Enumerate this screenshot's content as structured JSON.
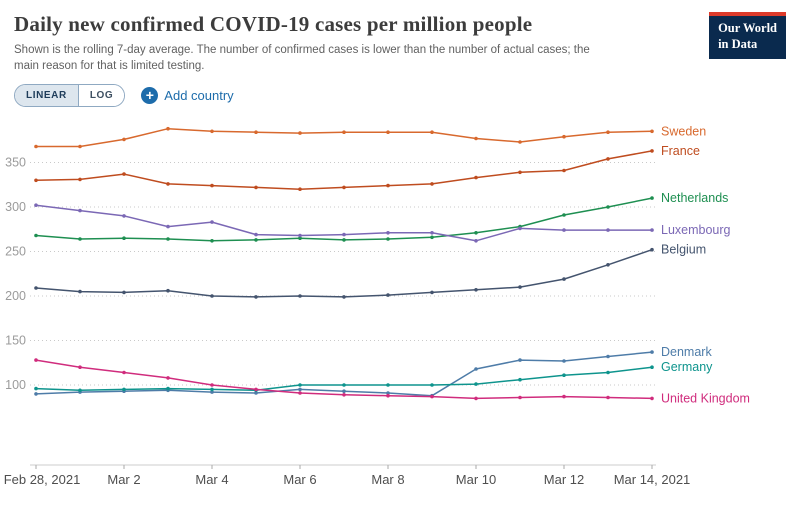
{
  "header": {
    "title": "Daily new confirmed COVID-19 cases per million people",
    "subtitle": "Shown is the rolling 7-day average. The number of confirmed cases is lower than the number of actual cases; the main reason for that is limited testing.",
    "logo": {
      "line1": "Our World",
      "line2": "in Data"
    }
  },
  "controls": {
    "linear_label": "LINEAR",
    "log_label": "LOG",
    "add_country_label": "Add country",
    "accent_color": "#1d6cab"
  },
  "chart_data": {
    "type": "line",
    "x": [
      "Feb 28",
      "Mar 1",
      "Mar 2",
      "Mar 3",
      "Mar 4",
      "Mar 5",
      "Mar 6",
      "Mar 7",
      "Mar 8",
      "Mar 9",
      "Mar 10",
      "Mar 11",
      "Mar 12",
      "Mar 13",
      "Mar 14"
    ],
    "x_tick_labels": [
      "Feb 28, 2021",
      "Mar 2",
      "Mar 4",
      "Mar 6",
      "Mar 8",
      "Mar 10",
      "Mar 12",
      "Mar 14, 2021"
    ],
    "x_tick_positions": [
      0,
      2,
      4,
      6,
      8,
      10,
      12,
      14
    ],
    "yticks": [
      100,
      150,
      200,
      250,
      300,
      350
    ],
    "ylim": [
      80,
      400
    ],
    "grid": "dotted-horizontal",
    "legend_position": "right-end-labels",
    "series": [
      {
        "name": "Sweden",
        "color": "#d8692e",
        "values": [
          368,
          368,
          376,
          388,
          385,
          384,
          383,
          384,
          384,
          384,
          377,
          373,
          379,
          384,
          385
        ]
      },
      {
        "name": "France",
        "color": "#bf4c1f",
        "values": [
          330,
          331,
          337,
          326,
          324,
          322,
          320,
          322,
          324,
          326,
          333,
          339,
          341,
          354,
          363
        ]
      },
      {
        "name": "Netherlands",
        "color": "#1e8f51",
        "values": [
          268,
          264,
          265,
          264,
          262,
          263,
          265,
          263,
          264,
          266,
          271,
          278,
          291,
          300,
          310
        ]
      },
      {
        "name": "Luxembourg",
        "color": "#7b68b5",
        "values": [
          302,
          296,
          290,
          278,
          283,
          269,
          268,
          269,
          271,
          271,
          262,
          276,
          274,
          274,
          274
        ]
      },
      {
        "name": "Belgium",
        "color": "#44546e",
        "values": [
          209,
          205,
          204,
          206,
          200,
          199,
          200,
          199,
          201,
          204,
          207,
          210,
          219,
          235,
          252
        ]
      },
      {
        "name": "Denmark",
        "color": "#4e7ca8",
        "values": [
          90,
          92,
          93,
          94,
          92,
          91,
          95,
          93,
          91,
          88,
          118,
          128,
          127,
          132,
          137
        ]
      },
      {
        "name": "Germany",
        "color": "#0e948d",
        "values": [
          96,
          94,
          95,
          96,
          95,
          94,
          100,
          100,
          100,
          100,
          101,
          106,
          111,
          114,
          120
        ]
      },
      {
        "name": "United Kingdom",
        "color": "#d02c7d",
        "values": [
          128,
          120,
          114,
          108,
          100,
          95,
          91,
          89,
          88,
          87,
          85,
          86,
          87,
          86,
          85
        ]
      }
    ]
  }
}
